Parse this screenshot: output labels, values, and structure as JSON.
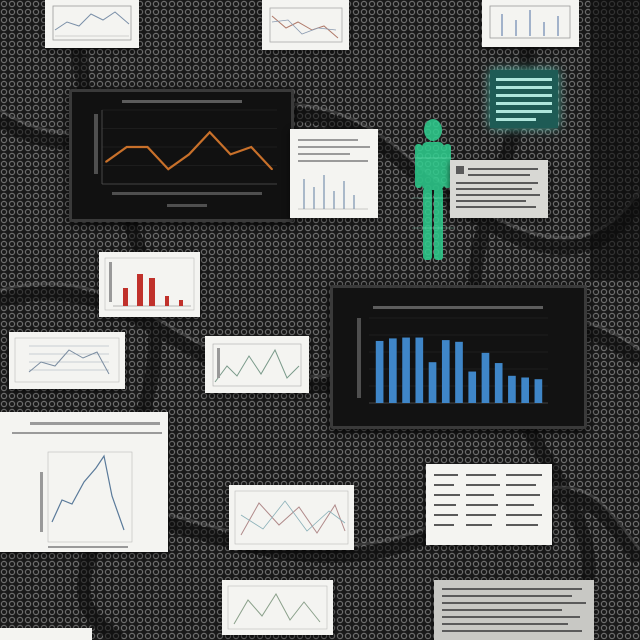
{
  "scene": {
    "background_color": "#1a1a1a",
    "mesh_color": "#6d6d6d",
    "card_color": "#f4f4f1",
    "monitor_color": "#0f0f0f",
    "accent_line_color": "#c8702a",
    "accent_bar_color": "#3f86c8",
    "accent_red_color": "#c0312b",
    "hologram_color": "#2ecf8f",
    "glow_color": "#6ef0dc"
  },
  "chart_data": [
    {
      "type": "line",
      "x": [
        1,
        2,
        3,
        4,
        5,
        6,
        7,
        8,
        9
      ],
      "series": [
        {
          "values": [
            3,
            5,
            5,
            2,
            4,
            7,
            4,
            5,
            2
          ]
        }
      ],
      "ylim": [
        0,
        10
      ],
      "grid": true
    },
    {
      "type": "bar",
      "categories": [
        "1",
        "2",
        "3",
        "4",
        "5",
        "6",
        "7",
        "8",
        "9",
        "10",
        "11",
        "12",
        "13"
      ],
      "values": [
        7.3,
        7.6,
        7.7,
        7.7,
        4.8,
        7.4,
        7.2,
        3.7,
        5.9,
        4.7,
        3.2,
        3.0,
        2.8
      ],
      "ylim": [
        0,
        10
      ],
      "grid": true
    }
  ]
}
